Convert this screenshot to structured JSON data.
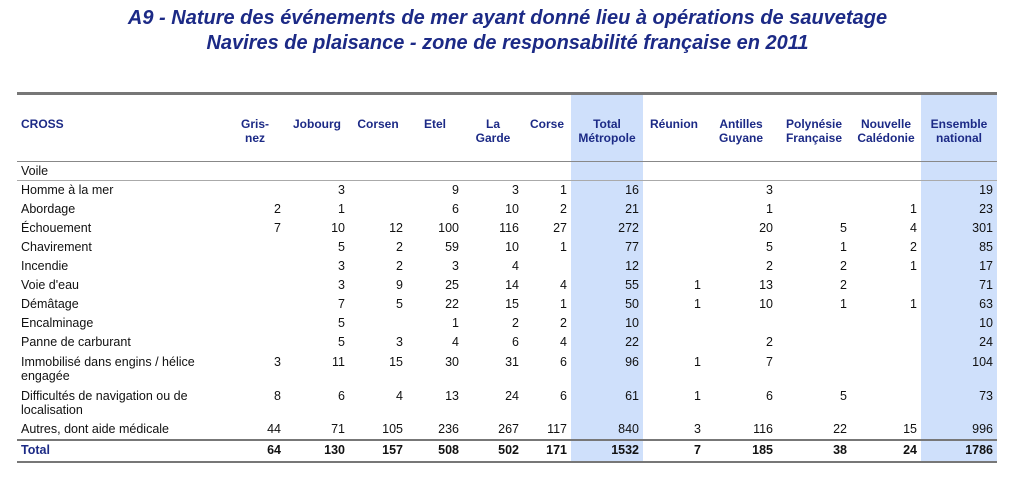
{
  "title": {
    "line1": "A9 - Nature des événements de mer ayant donné lieu à opérations de sauvetage",
    "line2": "Navires de plaisance - zone de responsabilité française en 2011"
  },
  "table": {
    "columns": [
      {
        "line1": "CROSS",
        "line2": ""
      },
      {
        "line1": "Gris-",
        "line2": "nez"
      },
      {
        "line1": "Jobourg",
        "line2": ""
      },
      {
        "line1": "Corsen",
        "line2": ""
      },
      {
        "line1": "Etel",
        "line2": ""
      },
      {
        "line1": "La",
        "line2": "Garde"
      },
      {
        "line1": "Corse",
        "line2": ""
      },
      {
        "line1": "Total",
        "line2": "Métropole"
      },
      {
        "line1": "Réunion",
        "line2": ""
      },
      {
        "line1": "Antilles",
        "line2": "Guyane"
      },
      {
        "line1": "Polynésie",
        "line2": "Française"
      },
      {
        "line1": "Nouvelle",
        "line2": "Calédonie"
      },
      {
        "line1": "Ensemble",
        "line2": "national"
      }
    ],
    "section": "Voile",
    "rows": [
      {
        "label": "Homme à la mer",
        "values": [
          "",
          "3",
          "",
          "9",
          "3",
          "1",
          "16",
          "",
          "3",
          "",
          "",
          "19"
        ]
      },
      {
        "label": "Abordage",
        "values": [
          "2",
          "1",
          "",
          "6",
          "10",
          "2",
          "21",
          "",
          "1",
          "",
          "1",
          "23"
        ]
      },
      {
        "label": "Échouement",
        "values": [
          "7",
          "10",
          "12",
          "100",
          "116",
          "27",
          "272",
          "",
          "20",
          "5",
          "4",
          "301"
        ]
      },
      {
        "label": "Chavirement",
        "values": [
          "",
          "5",
          "2",
          "59",
          "10",
          "1",
          "77",
          "",
          "5",
          "1",
          "2",
          "85"
        ]
      },
      {
        "label": "Incendie",
        "values": [
          "",
          "3",
          "2",
          "3",
          "4",
          "",
          "12",
          "",
          "2",
          "2",
          "1",
          "17"
        ]
      },
      {
        "label": "Voie d'eau",
        "values": [
          "",
          "3",
          "9",
          "25",
          "14",
          "4",
          "55",
          "1",
          "13",
          "2",
          "",
          "71"
        ]
      },
      {
        "label": "Démâtage",
        "values": [
          "",
          "7",
          "5",
          "22",
          "15",
          "1",
          "50",
          "1",
          "10",
          "1",
          "1",
          "63"
        ]
      },
      {
        "label": "Encalminage",
        "values": [
          "",
          "5",
          "",
          "1",
          "2",
          "2",
          "10",
          "",
          "",
          "",
          "",
          "10"
        ]
      },
      {
        "label": "Panne de carburant",
        "values": [
          "",
          "5",
          "3",
          "4",
          "6",
          "4",
          "22",
          "",
          "2",
          "",
          "",
          "24"
        ]
      },
      {
        "label": "Immobilisé dans engins / hélice engagée",
        "values": [
          "3",
          "11",
          "15",
          "30",
          "31",
          "6",
          "96",
          "1",
          "7",
          "",
          "",
          "104"
        ],
        "tall": true
      },
      {
        "label": "Difficultés de navigation ou de localisation",
        "values": [
          "8",
          "6",
          "4",
          "13",
          "24",
          "6",
          "61",
          "1",
          "6",
          "5",
          "",
          "73"
        ],
        "tall": true
      },
      {
        "label": "Autres, dont aide médicale",
        "values": [
          "44",
          "71",
          "105",
          "236",
          "267",
          "117",
          "840",
          "3",
          "116",
          "22",
          "15",
          "996"
        ]
      }
    ],
    "total": {
      "label": "Total",
      "values": [
        "64",
        "130",
        "157",
        "508",
        "502",
        "171",
        "1532",
        "7",
        "185",
        "38",
        "24",
        "1786"
      ]
    }
  }
}
